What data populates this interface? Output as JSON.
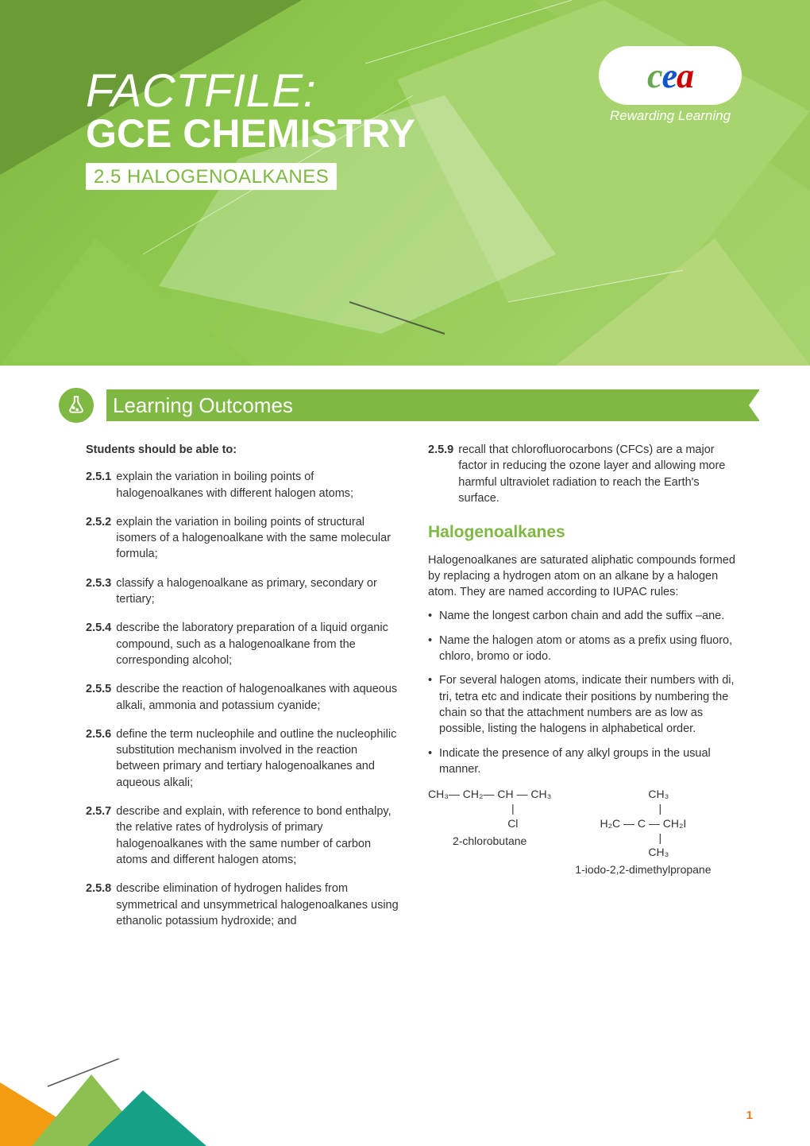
{
  "hero": {
    "bg_gradient_from": "#7fb842",
    "bg_gradient_mid": "#8fc94f",
    "bg_gradient_to": "#a8d46f",
    "poly_colors": {
      "dark": "#5b8a2a",
      "mid": "#8cc152",
      "light": "#b5d77a",
      "lightest": "#cde2a1",
      "white_trans": "rgba(255,255,255,0.35)"
    }
  },
  "logo": {
    "c": "c",
    "e": "e",
    "a": "a",
    "tagline": "Rewarding Learning",
    "colors": {
      "c": "#6aa84f",
      "e": "#1155cc",
      "a": "#cc0000"
    }
  },
  "title": {
    "factfile": "FACTFILE:",
    "subject": "GCE CHEMISTRY",
    "topic": "2.5 HALOGENOALKANES",
    "text_color": "#ffffff",
    "topic_bg": "#ffffff",
    "topic_color": "#7fb842"
  },
  "section": {
    "heading": "Learning Outcomes",
    "band_color": "#7fb842"
  },
  "left": {
    "intro": "Students should be able to:",
    "items": [
      {
        "num": "2.5.1",
        "text": "explain the variation in boiling points of halogenoalkanes with different halogen atoms;"
      },
      {
        "num": "2.5.2",
        "text": "explain the variation in boiling points of structural isomers of a halogenoalkane with the same molecular formula;"
      },
      {
        "num": "2.5.3",
        "text": "classify a halogenoalkane as primary, secondary or tertiary;"
      },
      {
        "num": "2.5.4",
        "text": "describe the laboratory preparation of a liquid organic compound, such as a halogenoalkane from the corresponding alcohol;"
      },
      {
        "num": "2.5.5",
        "text": "describe the reaction of halogenoalkanes with aqueous alkali, ammonia and potassium cyanide;"
      },
      {
        "num": "2.5.6",
        "text": "define the term nucleophile and outline the nucleophilic substitution mechanism involved in the reaction between primary and tertiary halogenoalkanes and aqueous alkali;"
      },
      {
        "num": "2.5.7",
        "text": "describe and explain, with reference to bond enthalpy, the relative rates of hydrolysis of primary halogenoalkanes with the same number of carbon atoms and different halogen atoms;"
      },
      {
        "num": "2.5.8",
        "text": "describe elimination of hydrogen halides from symmetrical and unsymmetrical halogenoalkanes using ethanolic potassium hydroxide; and"
      }
    ]
  },
  "right": {
    "continued": {
      "num": "2.5.9",
      "text": "recall that chlorofluorocarbons (CFCs) are a major factor in reducing the ozone layer and allowing more harmful ultraviolet radiation to reach the Earth's surface."
    },
    "heading": "Halogenoalkanes",
    "heading_color": "#7fb842",
    "para": "Halogenoalkanes are saturated aliphatic compounds formed by replacing a hydrogen atom on an alkane by a halogen atom. They are named according to IUPAC rules:",
    "bullets": [
      "Name the longest carbon chain and add the suffix –ane.",
      "Name the halogen atom or atoms as a prefix using fluoro, chloro, bromo or iodo.",
      "For several halogen atoms, indicate their numbers with di, tri, tetra etc and indicate their positions by numbering the chain so that the attachment numbers are as low as possible, listing the halogens in alphabetical order.",
      "Indicate the presence of any alkyl groups in the usual manner."
    ],
    "struct1": {
      "line1": "CH₃— CH₂— CH — CH₃",
      "line2": "               |",
      "line3": "               Cl",
      "name": "2-chlorobutane"
    },
    "struct2": {
      "line1": "          CH₃",
      "line2": "           |",
      "line3": "H₂C — C — CH₂I",
      "line4": "           |",
      "line5": "          CH₃",
      "name": "1-iodo-2,2-dimethylpropane"
    }
  },
  "footer": {
    "tri_colors": {
      "a": "#f39c12",
      "b": "#16a085",
      "c": "#8cc152"
    },
    "page": "1",
    "page_color": "#e67e22"
  }
}
